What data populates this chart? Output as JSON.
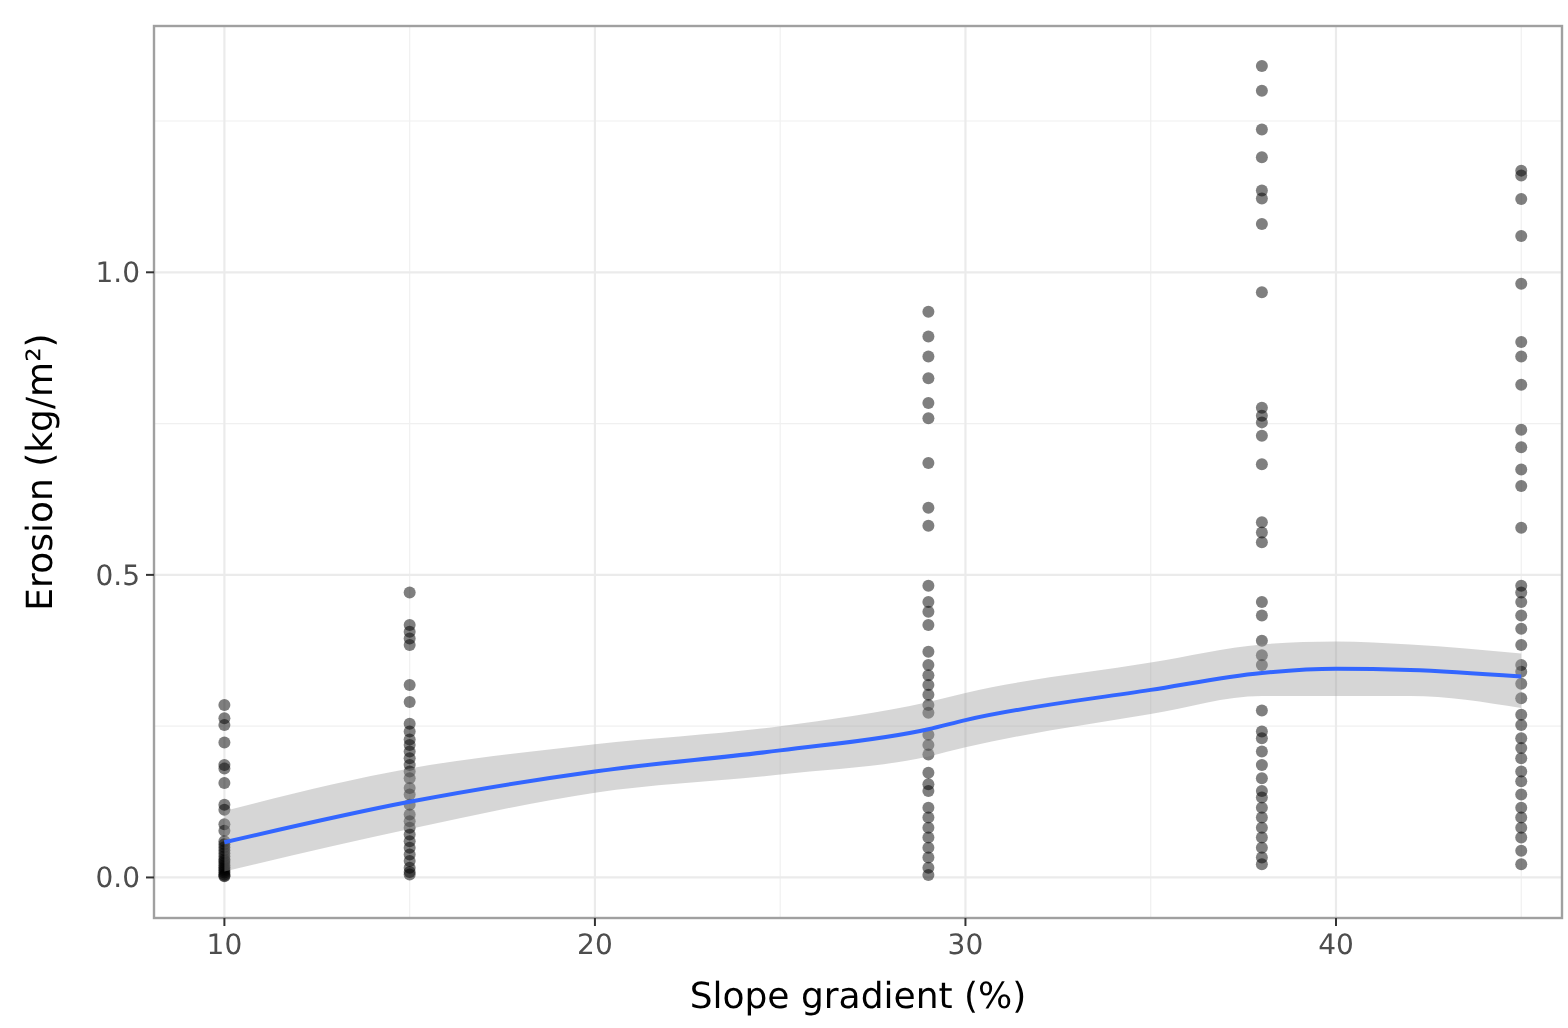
{
  "chart_data": {
    "type": "scatter",
    "xlabel": "Slope gradient (%)",
    "ylabel": "Erosion (kg/m²)",
    "xlim": [
      8.1,
      46.1
    ],
    "xticks": [
      10,
      20,
      30,
      40
    ],
    "ylim": [
      -0.067,
      1.407
    ],
    "yticks": [
      {
        "value": 0,
        "label": "0.0"
      },
      {
        "value": 0.5,
        "label": "0.5"
      },
      {
        "value": 1,
        "label": "1.0"
      }
    ],
    "grid": true,
    "series": [
      {
        "color": "#000000",
        "marker": "circle",
        "x": [
          10,
          10,
          10,
          10,
          10,
          10,
          10,
          10,
          10,
          10,
          10,
          10,
          10,
          10,
          10,
          10,
          10,
          10,
          10,
          10,
          10,
          10,
          10,
          10,
          10,
          10,
          10,
          10,
          15,
          15,
          15,
          15,
          15,
          15,
          15,
          15,
          15,
          15,
          15,
          15,
          15,
          15,
          15,
          15,
          15,
          15,
          15,
          15,
          15,
          15,
          15,
          15,
          15,
          15,
          15,
          15,
          15,
          15,
          29,
          29,
          29,
          29,
          29,
          29,
          29,
          29,
          29,
          29,
          29,
          29,
          29,
          29,
          29,
          29,
          29,
          29,
          29,
          29,
          29,
          29,
          29,
          29,
          29,
          29,
          29,
          29,
          29,
          29,
          29,
          29,
          29,
          29,
          38,
          38,
          38,
          38,
          38,
          38,
          38,
          38,
          38,
          38,
          38,
          38,
          38,
          38,
          38,
          38,
          38,
          38,
          38,
          38,
          38,
          38,
          38,
          38,
          38,
          38,
          38,
          38,
          38,
          38,
          38,
          38,
          38,
          38,
          38,
          38,
          45,
          45,
          45,
          45,
          45,
          45,
          45,
          45,
          45,
          45,
          45,
          45,
          45,
          45,
          45,
          45,
          45,
          45,
          45,
          45,
          45,
          45,
          45,
          45,
          45,
          45,
          45,
          45,
          45,
          45,
          45,
          45,
          45,
          45,
          45,
          45,
          45
        ],
        "values": [
          0.285,
          0.263,
          0.252,
          0.223,
          0.186,
          0.18,
          0.156,
          0.12,
          0.112,
          0.088,
          0.077,
          0.06,
          0.055,
          0.05,
          0.045,
          0.04,
          0.035,
          0.03,
          0.027,
          0.024,
          0.02,
          0.017,
          0.014,
          0.011,
          0.008,
          0.005,
          0.003,
          0.002,
          0.471,
          0.417,
          0.406,
          0.395,
          0.384,
          0.318,
          0.29,
          0.254,
          0.241,
          0.228,
          0.219,
          0.208,
          0.197,
          0.186,
          0.175,
          0.164,
          0.148,
          0.137,
          0.12,
          0.104,
          0.093,
          0.082,
          0.071,
          0.06,
          0.049,
          0.038,
          0.027,
          0.016,
          0.009,
          0.005,
          0.935,
          0.894,
          0.861,
          0.825,
          0.784,
          0.759,
          0.685,
          0.611,
          0.581,
          0.482,
          0.455,
          0.439,
          0.417,
          0.373,
          0.351,
          0.334,
          0.318,
          0.302,
          0.285,
          0.272,
          0.236,
          0.219,
          0.203,
          0.173,
          0.154,
          0.143,
          0.115,
          0.099,
          0.082,
          0.066,
          0.049,
          0.033,
          0.016,
          0.004,
          1.341,
          1.3,
          1.236,
          1.19,
          1.135,
          1.122,
          1.08,
          0.967,
          0.776,
          0.763,
          0.752,
          0.73,
          0.683,
          0.587,
          0.57,
          0.554,
          0.455,
          0.433,
          0.391,
          0.367,
          0.351,
          0.276,
          0.241,
          0.23,
          0.208,
          0.186,
          0.164,
          0.143,
          0.132,
          0.115,
          0.099,
          0.082,
          0.066,
          0.049,
          0.033,
          0.022,
          1.168,
          1.16,
          1.121,
          1.06,
          0.981,
          0.885,
          0.861,
          0.814,
          0.74,
          0.711,
          0.674,
          0.647,
          0.578,
          0.482,
          0.471,
          0.455,
          0.433,
          0.411,
          0.384,
          0.351,
          0.34,
          0.32,
          0.296,
          0.269,
          0.252,
          0.23,
          0.214,
          0.197,
          0.175,
          0.159,
          0.137,
          0.115,
          0.099,
          0.082,
          0.066,
          0.044,
          0.022
        ]
      },
      {
        "type": "line",
        "color": "#3366ff",
        "x": [
          10,
          15,
          20,
          25,
          29,
          30,
          35,
          38,
          40,
          42,
          45
        ],
        "values": [
          0.058,
          0.125,
          0.175,
          0.21,
          0.245,
          0.26,
          0.31,
          0.338,
          0.345,
          0.343,
          0.332
        ],
        "lower": [
          0.01,
          0.08,
          0.14,
          0.17,
          0.2,
          0.215,
          0.27,
          0.3,
          0.3,
          0.3,
          0.28
        ],
        "upper": [
          0.11,
          0.18,
          0.22,
          0.25,
          0.29,
          0.305,
          0.355,
          0.385,
          0.39,
          0.385,
          0.37
        ]
      }
    ]
  }
}
